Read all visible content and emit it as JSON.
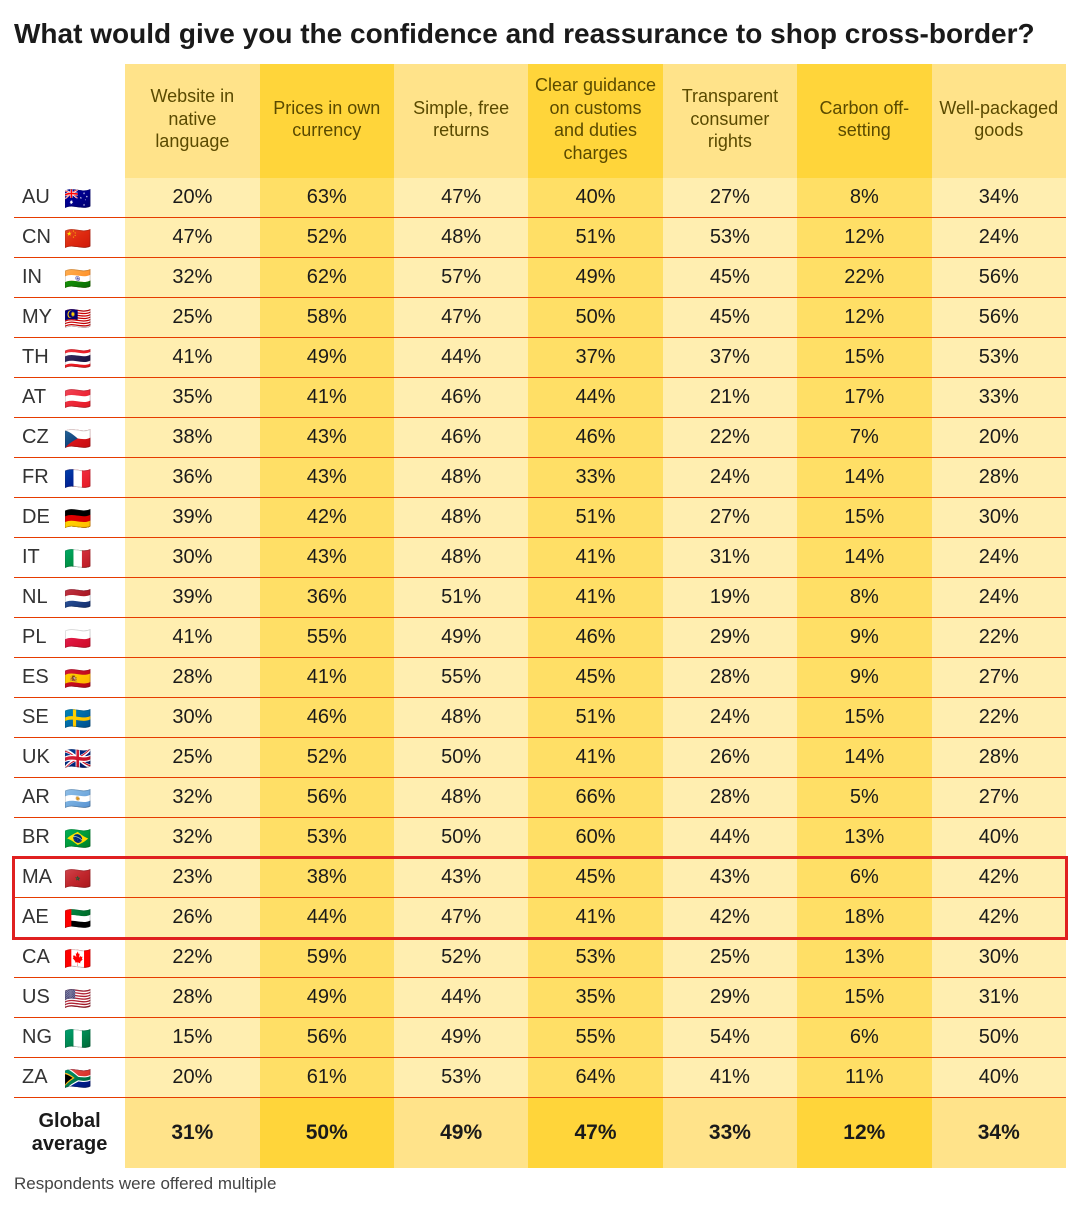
{
  "title": "What would give you the confidence and reassurance to shop cross-border?",
  "footnote": "Respondents were offered multiple",
  "global_label_line1": "Global",
  "global_label_line2": "average",
  "table": {
    "type": "table",
    "header_fontsize": 18,
    "cell_fontsize": 20,
    "row_border_color": "#e63b00",
    "columns": [
      "Website in native language",
      "Prices in own currency",
      "Simple, free returns",
      "Clear guidance on customs and duties charges",
      "Transparent consumer rights",
      "Carbon off-setting",
      "Well-packaged goods"
    ],
    "col_header_bg": [
      "#ffe38a",
      "#ffd53a",
      "#ffe38a",
      "#ffd53a",
      "#ffe38a",
      "#ffd53a",
      "#ffe38a"
    ],
    "col_cell_bg": [
      "#ffeeb0",
      "#ffdf66",
      "#ffeeb0",
      "#ffdf66",
      "#ffeeb0",
      "#ffdf66",
      "#ffeeb0"
    ],
    "col_footer_bg": [
      "#ffe38a",
      "#ffd53a",
      "#ffe38a",
      "#ffd53a",
      "#ffe38a",
      "#ffd53a",
      "#ffe38a"
    ],
    "global_average": [
      "31%",
      "50%",
      "49%",
      "47%",
      "33%",
      "12%",
      "34%"
    ],
    "highlight_rows": [
      17,
      18
    ],
    "highlight_border_color": "#e02020",
    "rows": [
      {
        "code": "AU",
        "flag": "🇦🇺",
        "values": [
          "20%",
          "63%",
          "47%",
          "40%",
          "27%",
          "8%",
          "34%"
        ]
      },
      {
        "code": "CN",
        "flag": "🇨🇳",
        "values": [
          "47%",
          "52%",
          "48%",
          "51%",
          "53%",
          "12%",
          "24%"
        ]
      },
      {
        "code": "IN",
        "flag": "🇮🇳",
        "values": [
          "32%",
          "62%",
          "57%",
          "49%",
          "45%",
          "22%",
          "56%"
        ]
      },
      {
        "code": "MY",
        "flag": "🇲🇾",
        "values": [
          "25%",
          "58%",
          "47%",
          "50%",
          "45%",
          "12%",
          "56%"
        ]
      },
      {
        "code": "TH",
        "flag": "🇹🇭",
        "values": [
          "41%",
          "49%",
          "44%",
          "37%",
          "37%",
          "15%",
          "53%"
        ]
      },
      {
        "code": "AT",
        "flag": "🇦🇹",
        "values": [
          "35%",
          "41%",
          "46%",
          "44%",
          "21%",
          "17%",
          "33%"
        ]
      },
      {
        "code": "CZ",
        "flag": "🇨🇿",
        "values": [
          "38%",
          "43%",
          "46%",
          "46%",
          "22%",
          "7%",
          "20%"
        ]
      },
      {
        "code": "FR",
        "flag": "🇫🇷",
        "values": [
          "36%",
          "43%",
          "48%",
          "33%",
          "24%",
          "14%",
          "28%"
        ]
      },
      {
        "code": "DE",
        "flag": "🇩🇪",
        "values": [
          "39%",
          "42%",
          "48%",
          "51%",
          "27%",
          "15%",
          "30%"
        ]
      },
      {
        "code": "IT",
        "flag": "🇮🇹",
        "values": [
          "30%",
          "43%",
          "48%",
          "41%",
          "31%",
          "14%",
          "24%"
        ]
      },
      {
        "code": "NL",
        "flag": "🇳🇱",
        "values": [
          "39%",
          "36%",
          "51%",
          "41%",
          "19%",
          "8%",
          "24%"
        ]
      },
      {
        "code": "PL",
        "flag": "🇵🇱",
        "values": [
          "41%",
          "55%",
          "49%",
          "46%",
          "29%",
          "9%",
          "22%"
        ]
      },
      {
        "code": "ES",
        "flag": "🇪🇸",
        "values": [
          "28%",
          "41%",
          "55%",
          "45%",
          "28%",
          "9%",
          "27%"
        ]
      },
      {
        "code": "SE",
        "flag": "🇸🇪",
        "values": [
          "30%",
          "46%",
          "48%",
          "51%",
          "24%",
          "15%",
          "22%"
        ]
      },
      {
        "code": "UK",
        "flag": "🇬🇧",
        "values": [
          "25%",
          "52%",
          "50%",
          "41%",
          "26%",
          "14%",
          "28%"
        ]
      },
      {
        "code": "AR",
        "flag": "🇦🇷",
        "values": [
          "32%",
          "56%",
          "48%",
          "66%",
          "28%",
          "5%",
          "27%"
        ]
      },
      {
        "code": "BR",
        "flag": "🇧🇷",
        "values": [
          "32%",
          "53%",
          "50%",
          "60%",
          "44%",
          "13%",
          "40%"
        ]
      },
      {
        "code": "MA",
        "flag": "🇲🇦",
        "values": [
          "23%",
          "38%",
          "43%",
          "45%",
          "43%",
          "6%",
          "42%"
        ]
      },
      {
        "code": "AE",
        "flag": "🇦🇪",
        "values": [
          "26%",
          "44%",
          "47%",
          "41%",
          "42%",
          "18%",
          "42%"
        ]
      },
      {
        "code": "CA",
        "flag": "🇨🇦",
        "values": [
          "22%",
          "59%",
          "52%",
          "53%",
          "25%",
          "13%",
          "30%"
        ]
      },
      {
        "code": "US",
        "flag": "🇺🇸",
        "values": [
          "28%",
          "49%",
          "44%",
          "35%",
          "29%",
          "15%",
          "31%"
        ]
      },
      {
        "code": "NG",
        "flag": "🇳🇬",
        "values": [
          "15%",
          "56%",
          "49%",
          "55%",
          "54%",
          "6%",
          "50%"
        ]
      },
      {
        "code": "ZA",
        "flag": "🇿🇦",
        "values": [
          "20%",
          "61%",
          "53%",
          "64%",
          "41%",
          "11%",
          "40%"
        ]
      }
    ]
  }
}
